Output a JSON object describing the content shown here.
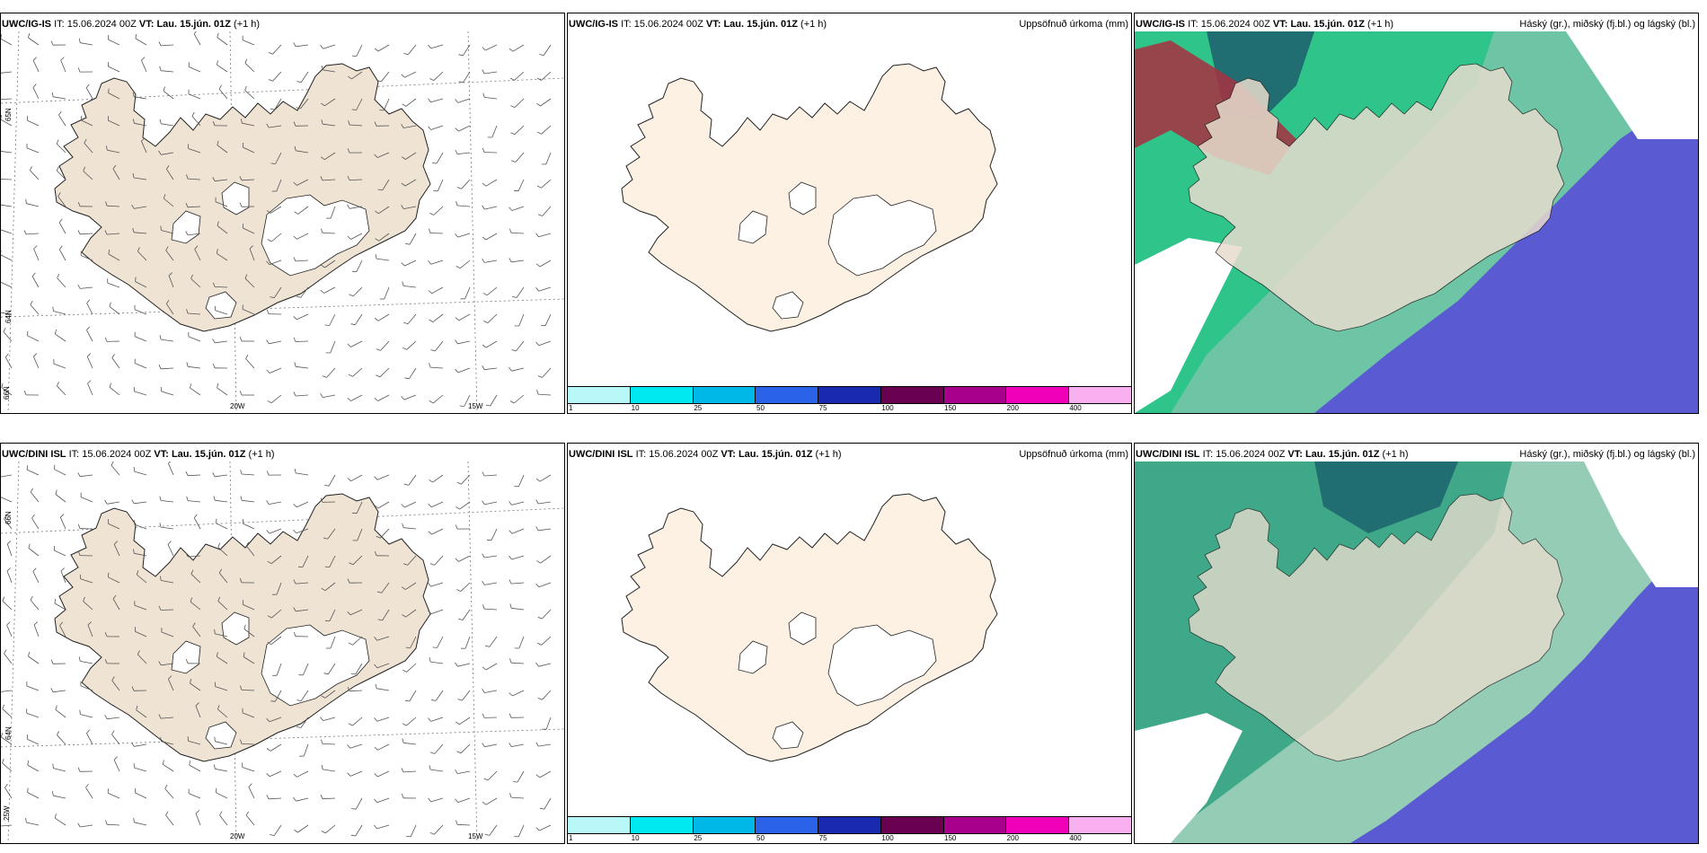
{
  "rows": [
    {
      "model": "UWC/IG-IS",
      "it_label": "IT:",
      "it_value": "15.06.2024 00Z",
      "vt_label": "VT:",
      "vt_value": "Lau. 15.jún. 01Z",
      "lead": "(+1 h)"
    },
    {
      "model": "UWC/DINI ISL",
      "it_label": "IT:",
      "it_value": "15.06.2024 00Z",
      "vt_label": "VT:",
      "vt_value": "Lau. 15.jún. 01Z",
      "lead": "(+1 h)"
    }
  ],
  "precip_title": "Uppsöfnuð úrkoma (mm)",
  "cloud_title": "Háský (gr.), miðský (fj.bl.) og lágský (bl.)",
  "grid_labels": {
    "lat_66": "66N",
    "lat_64": "64N",
    "lat_65": "65N",
    "lon_25": "25W",
    "lon_20": "20W",
    "lon_15": "15W"
  },
  "legend": {
    "labels": [
      "1",
      "10",
      "25",
      "50",
      "75",
      "100",
      "150",
      "200",
      "400"
    ],
    "colors": [
      "#b8f8f8",
      "#00e8f0",
      "#00b8e8",
      "#2a62e8",
      "#1a2ab0",
      "#6a0050",
      "#a8008c",
      "#f000b8",
      "#f8b0f0"
    ]
  },
  "colors": {
    "land": "#efe3d3",
    "land_precip": "#fdf1e3",
    "high_cloud": "#5a5ad2",
    "mid_cloud": "#2ec48a",
    "low_cloud_dark": "#216e72",
    "red_cloud": "#a83040"
  }
}
